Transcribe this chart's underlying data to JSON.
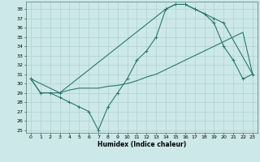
{
  "xlabel": "Humidex (Indice chaleur)",
  "bg_color": "#cce8e8",
  "grid_color": "#aacccc",
  "line_color": "#2a7870",
  "ylim": [
    24.7,
    38.8
  ],
  "xlim": [
    -0.5,
    23.5
  ],
  "yticks": [
    25,
    26,
    27,
    28,
    29,
    30,
    31,
    32,
    33,
    34,
    35,
    36,
    37,
    38
  ],
  "xticks": [
    0,
    1,
    2,
    3,
    4,
    5,
    6,
    7,
    8,
    9,
    10,
    11,
    12,
    13,
    14,
    15,
    16,
    17,
    18,
    19,
    20,
    21,
    22,
    23
  ],
  "line1_x": [
    0,
    1,
    2,
    3,
    4,
    5,
    6,
    7,
    8,
    9,
    10,
    11,
    12,
    13,
    14,
    15,
    16,
    17,
    18,
    19,
    20,
    21,
    22,
    23
  ],
  "line1_y": [
    30.5,
    29.0,
    29.0,
    28.5,
    28.0,
    27.5,
    27.0,
    25.0,
    27.5,
    29.0,
    30.5,
    32.5,
    33.5,
    35.0,
    38.0,
    38.5,
    38.5,
    38.0,
    37.5,
    36.5,
    34.0,
    32.5,
    30.5,
    31.0
  ],
  "line2_x": [
    0,
    1,
    2,
    3,
    4,
    5,
    6,
    7,
    8,
    9,
    10,
    11,
    12,
    13,
    14,
    15,
    16,
    17,
    18,
    19,
    20,
    21,
    22,
    23
  ],
  "line2_y": [
    30.5,
    29.0,
    29.0,
    29.0,
    29.3,
    29.5,
    29.5,
    29.5,
    29.7,
    29.8,
    30.0,
    30.3,
    30.7,
    31.0,
    31.5,
    32.0,
    32.5,
    33.0,
    33.5,
    34.0,
    34.5,
    35.0,
    35.5,
    31.0
  ],
  "line3_x": [
    0,
    3,
    14,
    15,
    16,
    17,
    18,
    19,
    20,
    23
  ],
  "line3_y": [
    30.5,
    29.0,
    38.0,
    38.5,
    38.5,
    38.0,
    37.5,
    37.0,
    36.5,
    31.0
  ]
}
